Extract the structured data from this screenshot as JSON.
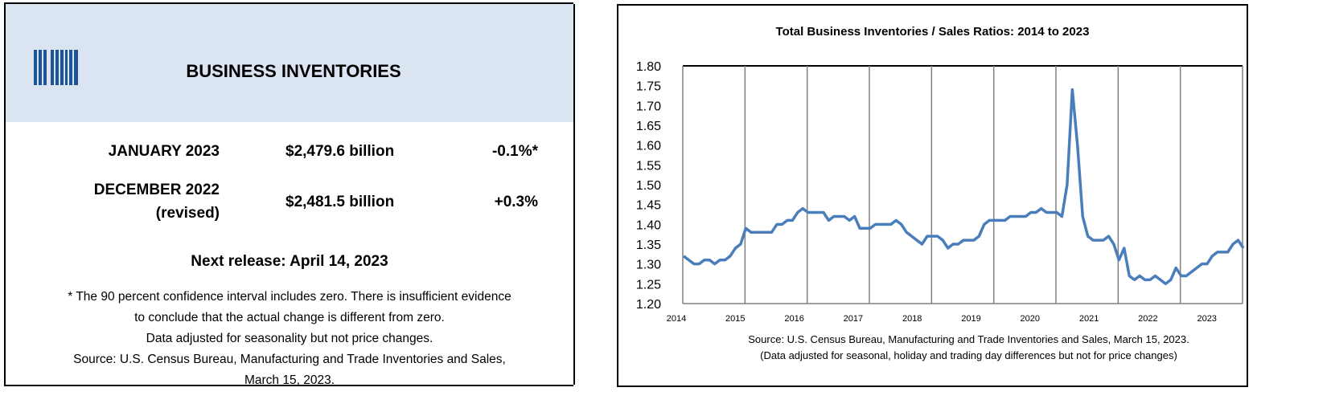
{
  "summary": {
    "title": "BUSINESS INVENTORIES",
    "logo_icon": "barcode-icon",
    "rows": [
      {
        "label": "JANUARY 2023",
        "sublabel": "",
        "value": "$2,479.6 billion",
        "change": "-0.1%*"
      },
      {
        "label": "DECEMBER 2022",
        "sublabel": "(revised)",
        "value": "$2,481.5 billion",
        "change": "+0.3%"
      }
    ],
    "next_release": "Next release: April 14, 2023",
    "notes": [
      "* The 90 percent confidence interval includes zero. There is insufficient evidence",
      "to conclude that the actual change is different from zero.",
      "Data adjusted for seasonality but not price changes.",
      "Source: U.S. Census Bureau, Manufacturing and Trade Inventories and Sales,",
      "March 15, 2023."
    ],
    "header_color": "#dbe5f1"
  },
  "chart_data": {
    "type": "line",
    "title": "Total Business Inventories / Sales Ratios: 2014 to 2023",
    "xlabel": "",
    "ylabel": "",
    "ylim": [
      1.2,
      1.8
    ],
    "y_ticks": [
      "1.80",
      "1.75",
      "1.70",
      "1.65",
      "1.60",
      "1.55",
      "1.50",
      "1.45",
      "1.40",
      "1.35",
      "1.30",
      "1.25",
      "1.20"
    ],
    "x_tick_labels": [
      "2014",
      "2015",
      "2016",
      "2017",
      "2018",
      "2019",
      "2020",
      "2021",
      "2022",
      "2023"
    ],
    "x_start": "2014-01",
    "frequency": "monthly",
    "grid": "vertical year lines",
    "line_color": "#4a7ebb",
    "values": [
      1.32,
      1.31,
      1.3,
      1.3,
      1.31,
      1.31,
      1.3,
      1.31,
      1.31,
      1.32,
      1.34,
      1.35,
      1.39,
      1.38,
      1.38,
      1.38,
      1.38,
      1.38,
      1.4,
      1.4,
      1.41,
      1.41,
      1.43,
      1.44,
      1.43,
      1.43,
      1.43,
      1.43,
      1.41,
      1.42,
      1.42,
      1.42,
      1.41,
      1.42,
      1.39,
      1.39,
      1.39,
      1.4,
      1.4,
      1.4,
      1.4,
      1.41,
      1.4,
      1.38,
      1.37,
      1.36,
      1.35,
      1.37,
      1.37,
      1.37,
      1.36,
      1.34,
      1.35,
      1.35,
      1.36,
      1.36,
      1.36,
      1.37,
      1.4,
      1.41,
      1.41,
      1.41,
      1.41,
      1.42,
      1.42,
      1.42,
      1.42,
      1.43,
      1.43,
      1.44,
      1.43,
      1.43,
      1.43,
      1.42,
      1.5,
      1.74,
      1.6,
      1.42,
      1.37,
      1.36,
      1.36,
      1.36,
      1.37,
      1.35,
      1.31,
      1.34,
      1.27,
      1.26,
      1.27,
      1.26,
      1.26,
      1.27,
      1.26,
      1.25,
      1.26,
      1.29,
      1.27,
      1.27,
      1.28,
      1.29,
      1.3,
      1.3,
      1.32,
      1.33,
      1.33,
      1.33,
      1.35,
      1.36,
      1.34
    ],
    "source_lines": [
      "Source: U.S. Census Bureau, Manufacturing and Trade Inventories and Sales, March 15, 2023.",
      "(Data adjusted for seasonal, holiday and trading day differences but not for price changes)"
    ]
  }
}
